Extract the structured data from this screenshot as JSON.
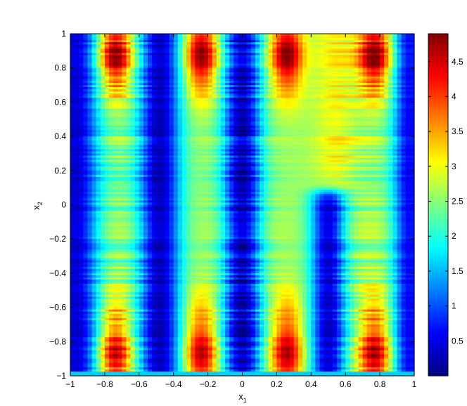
{
  "chart_data": {
    "type": "heatmap",
    "title": "",
    "xlabel": "x",
    "xlabel_subscript": "1",
    "ylabel": "x",
    "ylabel_subscript": "2",
    "xlim": [
      -1,
      1
    ],
    "ylim": [
      -1,
      1
    ],
    "x_ticks": [
      -1,
      -0.8,
      -0.6,
      -0.4,
      -0.2,
      0,
      0.2,
      0.4,
      0.6,
      0.8,
      1
    ],
    "y_ticks": [
      -1,
      -0.8,
      -0.6,
      -0.4,
      -0.2,
      0,
      0.2,
      0.4,
      0.6,
      0.8,
      1
    ],
    "x_tick_labels": [
      "−1",
      "−0.8",
      "−0.6",
      "−0.4",
      "−0.2",
      "0",
      "0.2",
      "0.4",
      "0.6",
      "0.8",
      "1"
    ],
    "y_tick_labels": [
      "−1",
      "−0.8",
      "−0.6",
      "−0.4",
      "−0.2",
      "0",
      "0.2",
      "0.4",
      "0.6",
      "0.8",
      "1"
    ],
    "colormap": "jet",
    "colorbar": {
      "range": [
        0.0,
        4.9
      ],
      "ticks": [
        0.5,
        1,
        1.5,
        2,
        2.5,
        3,
        3.5,
        4,
        4.5
      ],
      "tick_labels": [
        "0.5",
        "1",
        "1.5",
        "2",
        "2.5",
        "3",
        "3.5",
        "4",
        "4.5"
      ]
    },
    "grid": false,
    "surface": {
      "description_of_value_field": "valleys (low, blue) centered near x1 = -0.95, -0.48, 0, 0.5 (only for x2 < 0.1), 0.97; peaks (high, red) near x1 = -0.74, -0.24, 0.26, 0.77 concentrated at x2 near +0.95 and -0.93",
      "column_centers_x1": [
        -0.74,
        -0.24,
        0.26,
        0.77
      ],
      "valley_centers_x1": [
        -0.97,
        -0.48,
        0.0,
        0.5,
        0.97
      ],
      "peak_rows_x2": [
        0.92,
        -0.93
      ],
      "value_min": 0.05,
      "value_max": 4.9
    }
  }
}
